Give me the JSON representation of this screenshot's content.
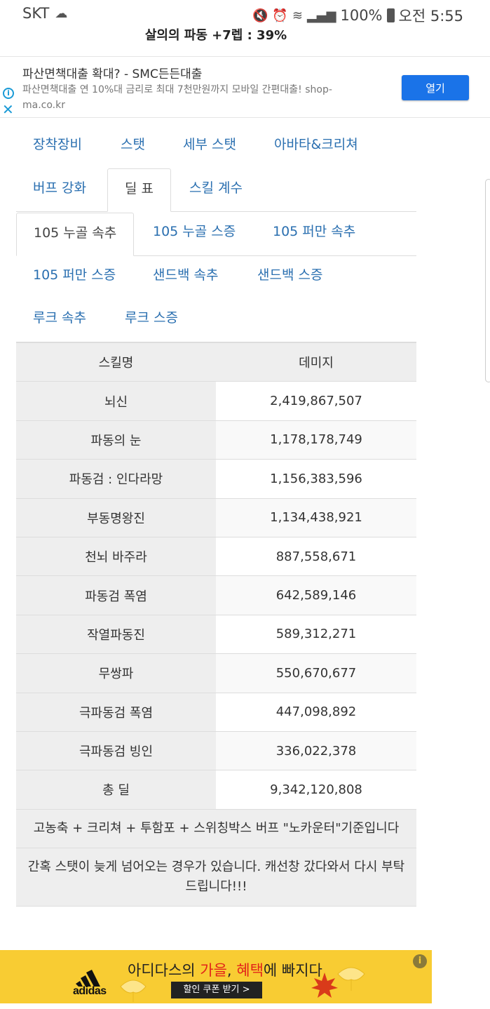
{
  "status_bar": {
    "carrier": "SKT",
    "battery": "100%",
    "time": "오전 5:55"
  },
  "page": {
    "cut_title": "살의의 파동 +7렙 : 39%"
  },
  "ad": {
    "title": "파산면책대출 확대? - SMC든든대출",
    "description": "파산면책대출 연 10%대 금리로 최대 7천만원까지 모바일 간편대출! shop-ma.co.kr",
    "button_label": "열기"
  },
  "tabs_main": [
    {
      "label": "장착장비"
    },
    {
      "label": "스탯"
    },
    {
      "label": "세부 스탯"
    },
    {
      "label": "아바타&크리쳐"
    },
    {
      "label": "버프 강화"
    },
    {
      "label": "딜 표"
    },
    {
      "label": "스킬 계수"
    }
  ],
  "tabs_sub": [
    {
      "label": "105 누골 속추"
    },
    {
      "label": "105 누골 스증"
    },
    {
      "label": "105 퍼만 속추"
    },
    {
      "label": "105 퍼만 스증"
    },
    {
      "label": "샌드백 속추"
    },
    {
      "label": "샌드백 스증"
    },
    {
      "label": "루크 속추"
    },
    {
      "label": "루크 스증"
    }
  ],
  "table": {
    "headers": [
      "스킬명",
      "데미지"
    ],
    "rows": [
      [
        "뇌신",
        "2,419,867,507"
      ],
      [
        "파동의 눈",
        "1,178,178,749"
      ],
      [
        "파동검 : 인다라망",
        "1,156,383,596"
      ],
      [
        "부동명왕진",
        "1,134,438,921"
      ],
      [
        "천뇌 바주라",
        "887,558,671"
      ],
      [
        "파동검 폭염",
        "642,589,146"
      ],
      [
        "작열파동진",
        "589,312,271"
      ],
      [
        "무쌍파",
        "550,670,677"
      ],
      [
        "극파동검 폭염",
        "447,098,892"
      ],
      [
        "극파동검 빙인",
        "336,022,378"
      ],
      [
        "총 딜",
        "9,342,120,808"
      ]
    ],
    "note1": "고농축 + 크리쳐 + 투함포 + 스위칭박스 버프 \"노카운터\"기준입니다",
    "note2": "간혹 스탯이 늦게 넘어오는 경우가 있습니다. 캐선창 갔다와서 다시 부탁드립니다!!!"
  },
  "bottom_ad": {
    "brand": "adidas",
    "headline_pre": "아디다스의 ",
    "headline_red1": "가을",
    "headline_mid": ", ",
    "headline_red2": "혜택",
    "headline_post": "에 빠지다",
    "coupon_label": "할인 쿠폰 받기  >"
  },
  "colors": {
    "tab_link": "#2a6fb0",
    "ad_button": "#1a73e8",
    "bottom_ad_bg": "#f8cc33"
  }
}
